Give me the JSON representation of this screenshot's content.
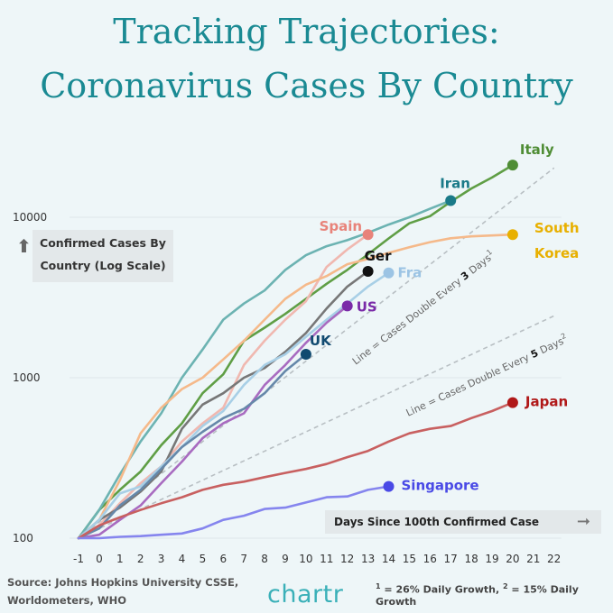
{
  "title_line1": "Tracking Trajectories:",
  "title_line2": "Coronavirus Cases By Country",
  "ylabel": [
    "Confirmed Cases By",
    "Country (Log Scale)"
  ],
  "xlabel": "Days Since 100th Confirmed Case",
  "source": [
    "Source: Johns Hopkins University CSSE,",
    "Worldometers, WHO"
  ],
  "brand": "chartr",
  "footnote": {
    "n1": "1",
    "t1": " = 26% Daily Growth, ",
    "n2": "2",
    "t2": " = 15% Daily Growth"
  },
  "chart_data": {
    "type": "line",
    "xlim": [
      -1,
      22
    ],
    "ylim": [
      100,
      30000
    ],
    "log_y": true,
    "x_ticks": [
      "-1",
      "0",
      "1",
      "2",
      "3",
      "4",
      "5",
      "6",
      "7",
      "8",
      "9",
      "10",
      "11",
      "12",
      "13",
      "14",
      "15",
      "16",
      "17",
      "18",
      "19",
      "20",
      "21",
      "22"
    ],
    "y_ticks": [
      {
        "v": 100,
        "label": "100"
      },
      {
        "v": 1000,
        "label": "1000"
      },
      {
        "v": 10000,
        "label": "10000"
      }
    ],
    "grid": true,
    "series": [
      {
        "name": "Italy",
        "color": "#5f9e45",
        "label_color": "#4f8d35",
        "x": [
          -1,
          0,
          1,
          2,
          3,
          4,
          5,
          6,
          7,
          8,
          9,
          10,
          11,
          12,
          13,
          14,
          15,
          16,
          17,
          18,
          19,
          20
        ],
        "y": [
          100,
          150,
          200,
          260,
          380,
          520,
          800,
          1050,
          1700,
          2050,
          2500,
          3100,
          3850,
          4700,
          5880,
          7380,
          9170,
          10150,
          12500,
          15100,
          17700,
          21150
        ]
      },
      {
        "name": "Iran",
        "color": "#6cb3b2",
        "label_color": "#1a7a88",
        "x": [
          -1,
          0,
          1,
          2,
          3,
          4,
          5,
          6,
          7,
          8,
          9,
          10,
          11,
          12,
          13,
          14,
          15,
          16,
          17
        ],
        "y": [
          100,
          150,
          250,
          400,
          600,
          1000,
          1500,
          2300,
          2900,
          3500,
          4700,
          5800,
          6600,
          7200,
          8000,
          9000,
          10000,
          11300,
          12700
        ]
      },
      {
        "name": "Spain",
        "color": "#f0b8b0",
        "label_color": "#e8837a",
        "x": [
          -1,
          0,
          1,
          2,
          3,
          4,
          5,
          6,
          7,
          8,
          9,
          10,
          11,
          12,
          13
        ],
        "y": [
          100,
          120,
          165,
          220,
          280,
          400,
          520,
          650,
          1200,
          1700,
          2300,
          3000,
          4900,
          6300,
          7800
        ]
      },
      {
        "name": "South Korea",
        "color": "#f5b98a",
        "label_color": "#e8b000",
        "x": [
          -1,
          0,
          1,
          2,
          3,
          4,
          5,
          6,
          7,
          8,
          9,
          10,
          11,
          12,
          13,
          14,
          15,
          16,
          17,
          18,
          19,
          20
        ],
        "y": [
          100,
          130,
          230,
          450,
          650,
          850,
          1000,
          1300,
          1700,
          2300,
          3100,
          3800,
          4300,
          5100,
          5500,
          6000,
          6500,
          7000,
          7400,
          7600,
          7700,
          7800
        ]
      },
      {
        "name": "Ger",
        "color": "#777777",
        "label_color": "#111111",
        "x": [
          -1,
          0,
          1,
          2,
          3,
          4,
          5,
          6,
          7,
          8,
          9,
          10,
          11,
          12,
          13
        ],
        "y": [
          100,
          130,
          155,
          195,
          260,
          480,
          680,
          800,
          1000,
          1150,
          1450,
          1900,
          2700,
          3700,
          4600
        ]
      },
      {
        "name": "Fra",
        "color": "#a8cfe6",
        "label_color": "#9cc4e4",
        "x": [
          -1,
          0,
          1,
          2,
          3,
          4,
          5,
          6,
          7,
          8,
          9,
          10,
          11,
          12,
          13,
          14
        ],
        "y": [
          100,
          130,
          190,
          210,
          280,
          370,
          500,
          620,
          900,
          1200,
          1400,
          1800,
          2300,
          2900,
          3700,
          4500
        ]
      },
      {
        "name": "US",
        "color": "#a86bc0",
        "label_color": "#7a2aa8",
        "x": [
          -1,
          0,
          1,
          2,
          3,
          4,
          5,
          6,
          7,
          8,
          9,
          10,
          11,
          12
        ],
        "y": [
          100,
          105,
          130,
          160,
          220,
          300,
          420,
          520,
          600,
          900,
          1200,
          1650,
          2200,
          2800
        ]
      },
      {
        "name": "UK",
        "color": "#6688aa",
        "label_color": "#104a70",
        "x": [
          -1,
          0,
          1,
          2,
          3,
          4,
          5,
          6,
          7,
          8,
          9,
          10
        ],
        "y": [
          100,
          115,
          160,
          200,
          270,
          370,
          460,
          560,
          640,
          800,
          1100,
          1400
        ]
      },
      {
        "name": "Japan",
        "color": "#c86060",
        "label_color": "#b01818",
        "x": [
          -1,
          0,
          1,
          2,
          3,
          4,
          5,
          6,
          7,
          8,
          9,
          10,
          11,
          12,
          13,
          14,
          15,
          16,
          17,
          18,
          19,
          20
        ],
        "y": [
          100,
          120,
          135,
          150,
          165,
          180,
          200,
          215,
          225,
          240,
          255,
          270,
          290,
          320,
          350,
          400,
          450,
          480,
          500,
          560,
          620,
          700
        ]
      },
      {
        "name": "Singapore",
        "color": "#8585ee",
        "label_color": "#4a4ae6",
        "x": [
          -1,
          0,
          1,
          2,
          3,
          4,
          5,
          6,
          7,
          8,
          9,
          10,
          11,
          12,
          13,
          14
        ],
        "y": [
          100,
          100,
          102,
          103,
          105,
          107,
          115,
          130,
          138,
          152,
          155,
          167,
          180,
          182,
          200,
          210
        ]
      }
    ],
    "reference_lines": [
      {
        "label_a": "Line = Cases Double Every ",
        "label_b": "3",
        "label_c": " Days",
        "sup": "1",
        "x": [
          -1,
          22
        ],
        "y": [
          100,
          20300
        ]
      },
      {
        "label_a": "Line = Cases Double Every ",
        "label_b": "5",
        "label_c": " Days",
        "sup": "2",
        "x": [
          -1,
          22
        ],
        "y": [
          100,
          2430
        ]
      }
    ],
    "annotations": {
      "south_korea_label": [
        "South",
        "Korea"
      ]
    }
  }
}
